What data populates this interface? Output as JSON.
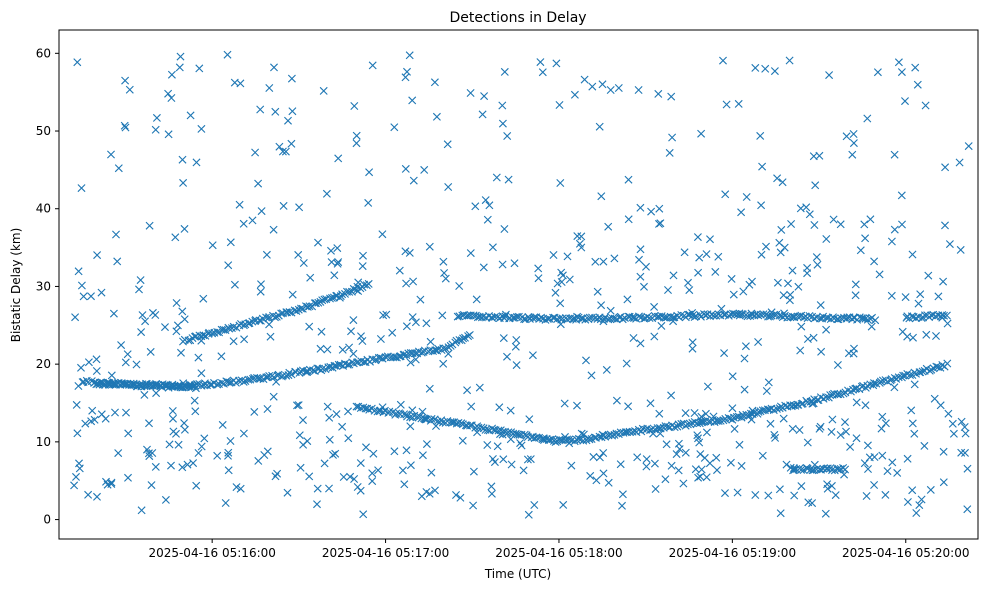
{
  "chart_data": {
    "type": "scatter",
    "title": "Detections in Delay",
    "xlabel": "Time (UTC)",
    "ylabel": "Bistatic Delay (km)",
    "marker": "x",
    "marker_color": "#1f77b4",
    "grid": false,
    "x_unit": "UTC time",
    "xlim": [
      "2025-04-16 05:15:07",
      "2025-04-16 05:20:25"
    ],
    "ylim": [
      -2.5,
      63
    ],
    "x_ticks": [
      "2025-04-16 05:16:00",
      "2025-04-16 05:17:00",
      "2025-04-16 05:18:00",
      "2025-04-16 05:19:00",
      "2025-04-16 05:20:00"
    ],
    "y_ticks": [
      0,
      10,
      20,
      30,
      40,
      50,
      60
    ],
    "tracks": [
      {
        "points": [
          [
            "2025-04-16 05:15:20",
            17.5
          ],
          [
            "2025-04-16 05:15:50",
            17.2
          ],
          [
            "2025-04-16 05:16:10",
            17.8
          ],
          [
            "2025-04-16 05:16:40",
            19.5
          ],
          [
            "2025-04-16 05:17:00",
            20.8
          ],
          [
            "2025-04-16 05:17:20",
            22.0
          ],
          [
            "2025-04-16 05:17:30",
            24.0
          ]
        ]
      },
      {
        "points": [
          [
            "2025-04-16 05:15:50",
            23.0
          ],
          [
            "2025-04-16 05:16:10",
            25.0
          ],
          [
            "2025-04-16 05:16:30",
            27.0
          ],
          [
            "2025-04-16 05:16:45",
            29.0
          ],
          [
            "2025-04-16 05:16:55",
            30.5
          ]
        ]
      },
      {
        "points": [
          [
            "2025-04-16 05:16:50",
            14.5
          ],
          [
            "2025-04-16 05:17:10",
            13.2
          ],
          [
            "2025-04-16 05:17:30",
            12.0
          ],
          [
            "2025-04-16 05:17:45",
            11.0
          ],
          [
            "2025-04-16 05:18:00",
            10.2
          ],
          [
            "2025-04-16 05:18:10",
            10.3
          ],
          [
            "2025-04-16 05:18:30",
            11.6
          ],
          [
            "2025-04-16 05:19:00",
            13.0
          ],
          [
            "2025-04-16 05:19:30",
            15.5
          ],
          [
            "2025-04-16 05:20:00",
            18.5
          ],
          [
            "2025-04-16 05:20:15",
            20.0
          ]
        ]
      },
      {
        "points": [
          [
            "2025-04-16 05:17:25",
            26.2
          ],
          [
            "2025-04-16 05:18:00",
            25.8
          ],
          [
            "2025-04-16 05:18:30",
            26.0
          ],
          [
            "2025-04-16 05:19:00",
            26.4
          ],
          [
            "2025-04-16 05:19:30",
            26.0
          ],
          [
            "2025-04-16 05:19:50",
            25.8
          ]
        ]
      },
      {
        "points": [
          [
            "2025-04-16 05:15:15",
            17.8
          ],
          [
            "2025-04-16 05:15:35",
            17.2
          ],
          [
            "2025-04-16 05:15:55",
            17.0
          ]
        ]
      },
      {
        "points": [
          [
            "2025-04-16 05:20:00",
            26.0
          ],
          [
            "2025-04-16 05:20:15",
            26.3
          ]
        ]
      },
      {
        "points": [
          [
            "2025-04-16 05:19:20",
            6.5
          ],
          [
            "2025-04-16 05:19:40",
            6.5
          ]
        ]
      }
    ],
    "clutter": {
      "count": 720,
      "x_range": [
        "2025-04-16 05:15:12",
        "2025-04-16 05:20:22"
      ],
      "y_range": [
        0.5,
        60
      ]
    }
  }
}
